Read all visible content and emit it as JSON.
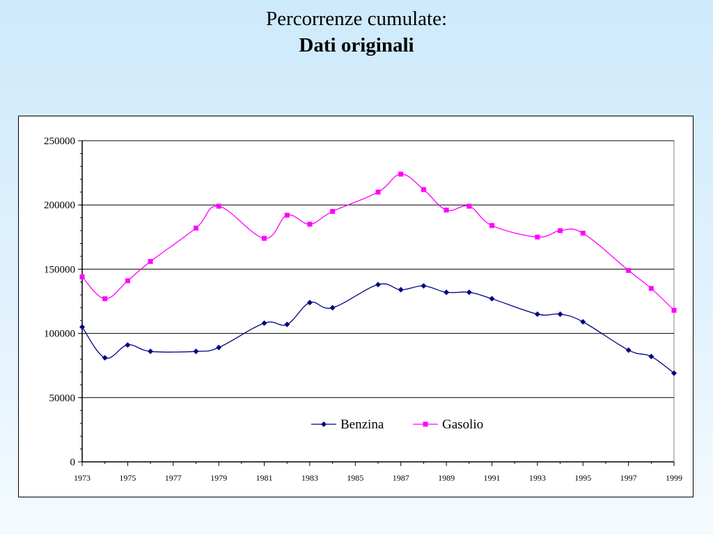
{
  "slide": {
    "title_line1": "Percorrenze cumulate:",
    "title_line2": "Dati originali"
  },
  "chart_data": {
    "type": "line",
    "title": "",
    "xlabel": "",
    "ylabel": "",
    "ylim": [
      0,
      250000
    ],
    "yticks": [
      "0",
      "50000",
      "100000",
      "150000",
      "200000",
      "250000"
    ],
    "xticks": [
      "1973",
      "1975",
      "1977",
      "1979",
      "1981",
      "1983",
      "1985",
      "1987",
      "1989",
      "1991",
      "1993",
      "1995",
      "1997",
      "1999"
    ],
    "grid": "horizontal",
    "legend_position": "bottom-center",
    "x": [
      1973,
      1974,
      1975,
      1976,
      1978,
      1979,
      1981,
      1982,
      1983,
      1984,
      1986,
      1987,
      1988,
      1989,
      1990,
      1991,
      1993,
      1994,
      1995,
      1997,
      1998,
      1999
    ],
    "series": [
      {
        "name": "Benzina",
        "color": "#000080",
        "marker": "diamond",
        "values": [
          105000,
          81000,
          91000,
          86000,
          86000,
          89000,
          108000,
          107000,
          124000,
          120000,
          138000,
          134000,
          137000,
          132000,
          132000,
          127000,
          115000,
          115000,
          109000,
          87000,
          82000,
          69000
        ]
      },
      {
        "name": "Gasolio",
        "color": "#ff00ff",
        "marker": "square",
        "values": [
          144000,
          127000,
          141000,
          156000,
          182000,
          199000,
          174000,
          192000,
          185000,
          195000,
          210000,
          224000,
          212000,
          196000,
          199000,
          184000,
          175000,
          180000,
          178000,
          149000,
          135000,
          118000
        ]
      }
    ]
  }
}
